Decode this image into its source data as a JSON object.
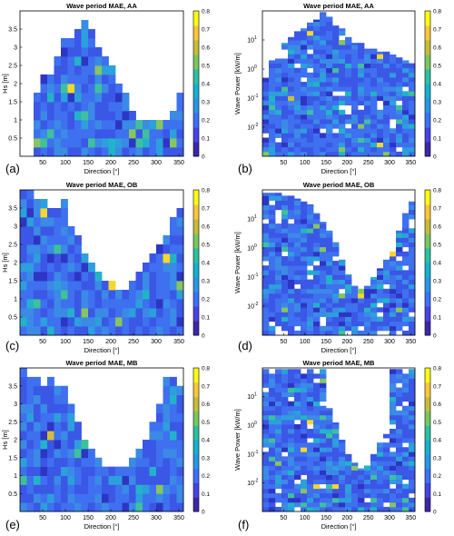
{
  "colors": {
    "colormap": [
      "#3e26a8",
      "#4743e8",
      "#3a71fd",
      "#2697e8",
      "#13b2d0",
      "#2bc1a2",
      "#78c75f",
      "#c5bd3a",
      "#f9c838",
      "#f9fb14"
    ],
    "cell_palette": [
      "#2d35c4",
      "#3b57e6",
      "#3e70ef",
      "#3a8ae6",
      "#2c9fdc",
      "#22b3c9",
      "#3fc09d",
      "#86c560",
      "#d2bd39",
      "#f8d62e"
    ],
    "frame": "#000000",
    "background": "#ffffff"
  },
  "chart_data": [
    {
      "panel": "a",
      "type": "heatmap",
      "title": "Wave period MAE, AA",
      "xlabel": "Direction [°]",
      "ylabel": "Hs [m]",
      "xlim": [
        0,
        360
      ],
      "ylim": [
        0,
        4
      ],
      "xticks": [
        50,
        100,
        150,
        200,
        250,
        300,
        350
      ],
      "yticks": [
        0.5,
        1,
        1.5,
        2,
        2.5,
        3,
        3.5
      ],
      "ytick_labels": [
        "0.5",
        "1",
        "1.5",
        "2",
        "2.5",
        "3",
        "3.5"
      ],
      "yscale": "linear",
      "bin_width": 15,
      "bin_height": 0.25,
      "coverage": [
        0,
        0,
        1.75,
        2.25,
        2.25,
        2.75,
        3.25,
        3.25,
        3.5,
        3.75,
        3.5,
        3.0,
        2.75,
        2.5,
        2.0,
        1.75,
        1.25,
        1.0,
        1.0,
        1.0,
        1.0,
        1.0,
        1.25,
        1.75
      ],
      "clim": [
        0,
        0.8
      ],
      "colorbar_ticks": [
        0,
        0.1,
        0.2,
        0.3,
        0.4,
        0.5,
        0.6,
        0.7,
        0.8
      ],
      "panel_label": "(a)"
    },
    {
      "panel": "b",
      "type": "heatmap",
      "title": "Wave period MAE, AA",
      "xlabel": "Direction [°]",
      "ylabel": "Wave Power [kW/m]",
      "xlim": [
        0,
        360
      ],
      "ylim": [
        -3,
        2
      ],
      "xticks": [
        50,
        100,
        150,
        200,
        250,
        300,
        350
      ],
      "yticks": [
        -2,
        -1,
        0,
        1
      ],
      "ytick_labels": [
        "10",
        "10",
        "10",
        "10"
      ],
      "ytick_exponents": [
        "-2",
        "-1",
        "0",
        "1"
      ],
      "yscale": "log",
      "bin_width": 15,
      "bin_height": 0.16,
      "coverage": [
        -0.3,
        0.3,
        0.5,
        0.9,
        1.1,
        1.3,
        1.4,
        1.6,
        1.7,
        2.0,
        1.8,
        1.5,
        1.4,
        1.1,
        0.9,
        0.9,
        0.7,
        0.7,
        0.6,
        0.6,
        0.5,
        0.4,
        0.3,
        0.2
      ],
      "clim": [
        0,
        0.8
      ],
      "colorbar_ticks": [
        0,
        0.1,
        0.2,
        0.3,
        0.4,
        0.5,
        0.6,
        0.7,
        0.8
      ],
      "panel_label": "(b)"
    },
    {
      "panel": "c",
      "type": "heatmap",
      "title": "Wave period MAE, OB",
      "xlabel": "Direction [°]",
      "ylabel": "Hs [m]",
      "xlim": [
        0,
        360
      ],
      "ylim": [
        0,
        4
      ],
      "xticks": [
        50,
        100,
        150,
        200,
        250,
        300,
        350
      ],
      "yticks": [
        0.5,
        1,
        1.5,
        2,
        2.5,
        3,
        3.5
      ],
      "ytick_labels": [
        "0.5",
        "1",
        "1.5",
        "2",
        "2.5",
        "3",
        "3.5"
      ],
      "yscale": "linear",
      "bin_width": 15,
      "bin_height": 0.25,
      "coverage": [
        4.0,
        4.0,
        3.75,
        3.75,
        3.5,
        3.5,
        3.75,
        3.0,
        2.75,
        2.25,
        2.0,
        1.75,
        1.5,
        1.5,
        1.25,
        1.25,
        1.5,
        1.75,
        2.0,
        2.25,
        2.5,
        2.75,
        3.25,
        3.5
      ],
      "clim": [
        0,
        0.8
      ],
      "colorbar_ticks": [
        0,
        0.1,
        0.2,
        0.3,
        0.4,
        0.5,
        0.6,
        0.7,
        0.8
      ],
      "panel_label": "(c)"
    },
    {
      "panel": "d",
      "type": "heatmap",
      "title": "Wave period MAE, OB",
      "xlabel": "Direction [°]",
      "ylabel": "Wave Power [kW/m]",
      "xlim": [
        0,
        360
      ],
      "ylim": [
        -3,
        2
      ],
      "xticks": [
        50,
        100,
        150,
        200,
        250,
        300,
        350
      ],
      "yticks": [
        -2,
        -1,
        0,
        1
      ],
      "ytick_labels": [
        "10",
        "10",
        "10",
        "10"
      ],
      "ytick_exponents": [
        "-2",
        "-1",
        "0",
        "1"
      ],
      "yscale": "log",
      "bin_width": 15,
      "bin_height": 0.16,
      "coverage": [
        1.9,
        1.9,
        1.9,
        1.8,
        1.8,
        1.7,
        1.6,
        1.5,
        1.2,
        0.9,
        0.6,
        0.2,
        -0.4,
        -0.9,
        -1.3,
        -1.4,
        -1.3,
        -1.0,
        -0.7,
        -0.4,
        0.0,
        0.6,
        1.2,
        1.6
      ],
      "clim": [
        0,
        0.8
      ],
      "colorbar_ticks": [
        0,
        0.1,
        0.2,
        0.3,
        0.4,
        0.5,
        0.6,
        0.7,
        0.8
      ],
      "panel_label": "(d)"
    },
    {
      "panel": "e",
      "type": "heatmap",
      "title": "Wave period MAE, MB",
      "xlabel": "Direction [°]",
      "ylabel": "Hs [m]",
      "xlim": [
        0,
        360
      ],
      "ylim": [
        0,
        4
      ],
      "xticks": [
        50,
        100,
        150,
        200,
        250,
        300,
        350
      ],
      "yticks": [
        0.5,
        1,
        1.5,
        2,
        2.5,
        3,
        3.5
      ],
      "ytick_labels": [
        "0.5",
        "1",
        "1.5",
        "2",
        "2.5",
        "3",
        "3.5"
      ],
      "yscale": "linear",
      "bin_width": 15,
      "bin_height": 0.25,
      "coverage": [
        4.0,
        3.75,
        3.75,
        3.5,
        3.75,
        3.5,
        3.5,
        3.0,
        2.5,
        2.0,
        1.75,
        1.5,
        1.25,
        1.25,
        1.25,
        1.25,
        1.5,
        1.75,
        2.0,
        2.5,
        3.0,
        3.75,
        3.75,
        3.5
      ],
      "clim": [
        0,
        0.8
      ],
      "colorbar_ticks": [
        0,
        0.1,
        0.2,
        0.3,
        0.4,
        0.5,
        0.6,
        0.7,
        0.8
      ],
      "panel_label": "(e)"
    },
    {
      "panel": "f",
      "type": "heatmap",
      "title": "Wave period MAE, MB",
      "xlabel": "Direction [°]",
      "ylabel": "Wave Power [kW/m]",
      "xlim": [
        0,
        360
      ],
      "ylim": [
        -3,
        2
      ],
      "xticks": [
        50,
        100,
        150,
        200,
        250,
        300,
        350
      ],
      "yticks": [
        -2,
        -1,
        0,
        1
      ],
      "ytick_labels": [
        "10",
        "10",
        "10",
        "10"
      ],
      "ytick_exponents": [
        "-2",
        "-1",
        "0",
        "1"
      ],
      "yscale": "log",
      "bin_width": 15,
      "bin_height": 0.16,
      "coverage": [
        2.0,
        2.0,
        2.0,
        2.0,
        2.0,
        2.0,
        2.0,
        2.0,
        2.0,
        2.0,
        0.6,
        0.1,
        -0.5,
        -1.0,
        -1.3,
        -1.5,
        -1.4,
        -1.0,
        -0.6,
        -0.3,
        2.0,
        2.0,
        2.0,
        2.0
      ],
      "clim": [
        0,
        0.8
      ],
      "colorbar_ticks": [
        0,
        0.1,
        0.2,
        0.3,
        0.4,
        0.5,
        0.6,
        0.7,
        0.8
      ],
      "panel_label": "(f)"
    }
  ]
}
